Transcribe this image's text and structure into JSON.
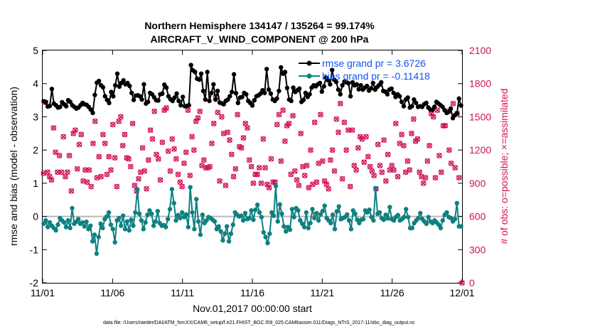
{
  "chart_data": {
    "type": "line",
    "title": "Northern Hemisphere 134147 / 135264 = 99.174%",
    "subtitle": "AIRCRAFT_V_WIND_COMPONENT @ 200 hPa",
    "xlabel": "Nov.01,2017 00:00:00 start",
    "ylabel_left": "rmse and bias (model - observation)",
    "ylabel_right": "# of obs: o=possible; ×=assimilated",
    "footer": "data file: /Users/raeder/DAI/ATM_forcXX/CAM6_setup/f.e21.FHIST_BGC.f09_025.CAM6assim.011/Diags_NTrS_2017-11/obs_diag_output.nc",
    "x_ticks": [
      "11/01",
      "11/06",
      "11/11",
      "11/16",
      "11/21",
      "11/26",
      "12/01"
    ],
    "x_tick_days": [
      0,
      5,
      10,
      15,
      20,
      25,
      30
    ],
    "x_range_days": [
      0,
      30
    ],
    "ylim_left": [
      -2,
      5
    ],
    "y_ticks_left": [
      "-2",
      "-1",
      "0",
      "1",
      "2",
      "3",
      "4",
      "5"
    ],
    "ylim_right": [
      0,
      2100
    ],
    "y_ticks_right": [
      "0",
      "300",
      "600",
      "900",
      "1200",
      "1500",
      "1800",
      "2100"
    ],
    "legend_location": "top-right",
    "colors": {
      "rmse": "#000000",
      "bias": "#0f8080",
      "obs": "#d0115a",
      "zero_line": "#b8b8b8"
    },
    "series": [
      {
        "name": "rmse",
        "legend": "rmse grand pr = 3.6726",
        "values": [
          3.47,
          3.45,
          3.31,
          3.33,
          3.84,
          3.4,
          3.35,
          3.28,
          3.3,
          3.44,
          3.38,
          3.32,
          3.5,
          3.45,
          3.35,
          3.3,
          3.25,
          3.28,
          3.35,
          3.42,
          3.38,
          3.36,
          3.3,
          3.22,
          3.12,
          3.66,
          4.03,
          4.08,
          3.95,
          3.89,
          3.62,
          3.51,
          3.42,
          3.75,
          3.62,
          3.95,
          4.3,
          3.91,
          4.02,
          4.1,
          3.98,
          4.02,
          3.93,
          3.72,
          3.51,
          3.64,
          3.65,
          3.62,
          3.52,
          3.98,
          3.4,
          3.45,
          3.72,
          3.68,
          3.59,
          3.5,
          3.49,
          3.68,
          3.7,
          3.97,
          3.88,
          3.62,
          3.53,
          3.48,
          3.58,
          3.7,
          3.48,
          3.35,
          3.6,
          3.32,
          3.33,
          3.35,
          4.56,
          4.4,
          4.35,
          4.15,
          4.12,
          4.3,
          3.78,
          3.52,
          4.35,
          3.48,
          3.72,
          3.98,
          3.52,
          3.78,
          3.43,
          3.41,
          3.38,
          3.48,
          3.52,
          3.62,
          3.75,
          4.28,
          3.71,
          3.42,
          3.58,
          3.6,
          3.72,
          3.68,
          3.48,
          3.42,
          3.34,
          3.5,
          3.62,
          3.65,
          3.7,
          3.8,
          3.72,
          4.44,
          3.82,
          3.7,
          3.52,
          3.48,
          3.55,
          3.78,
          4.49,
          4.3,
          4.35,
          3.87,
          3.52,
          3.48,
          3.88,
          3.75,
          3.8,
          3.85,
          3.45,
          3.51,
          3.72,
          3.6,
          3.68,
          3.88,
          3.95,
          3.92,
          3.98,
          4.02,
          3.76,
          3.92,
          4.18,
          4.1,
          3.98,
          4.41,
          4.12,
          4.05,
          3.82,
          3.68,
          3.95,
          4.06,
          4.04,
          4.01,
          3.62,
          4.04,
          3.95,
          3.98,
          3.83,
          3.95,
          3.82,
          3.88,
          3.93,
          3.79,
          3.86,
          4.02,
          3.82,
          3.9,
          3.96,
          4.04,
          3.78,
          3.76,
          3.68,
          3.82,
          3.85,
          3.72,
          3.6,
          3.68,
          3.62,
          3.45,
          3.32,
          3.52,
          3.58,
          3.28,
          3.32,
          3.52,
          3.42,
          3.3,
          3.32,
          3.3,
          3.38,
          3.42,
          3.28,
          3.22,
          3.21,
          3.3,
          3.45,
          3.4,
          3.35,
          3.3,
          3.2,
          3.12,
          3.15,
          3.25,
          2.96,
          3.05,
          3.1,
          3.55,
          3.34
        ]
      },
      {
        "name": "bias",
        "legend": "bias grand pr = -0.11418",
        "values": [
          -0.22,
          -0.12,
          -0.32,
          -0.18,
          -0.28,
          -0.35,
          -0.42,
          -0.25,
          -0.05,
          -0.12,
          -0.18,
          -0.32,
          -0.12,
          -0.35,
          0.25,
          -0.22,
          -0.16,
          -0.08,
          -0.22,
          -0.18,
          -0.3,
          -0.16,
          -0.38,
          -0.28,
          -0.75,
          -0.55,
          -1.12,
          -0.62,
          -0.22,
          -0.35,
          -0.08,
          0.0,
          0.12,
          -0.25,
          -0.38,
          -0.78,
          -0.12,
          -0.05,
          -0.28,
          0.02,
          -0.38,
          -0.15,
          -0.42,
          -0.1,
          -0.28,
          0.12,
          0.82,
          0.08,
          -0.12,
          -0.38,
          -0.18,
          0.05,
          0.18,
          0.08,
          -0.28,
          -0.15,
          0.16,
          -0.2,
          -0.28,
          -0.26,
          -0.32,
          -0.08,
          0.22,
          0.82,
          0.4,
          -0.12,
          0.04,
          -0.05,
          0.12,
          -0.02,
          0.06,
          -0.32,
          0.88,
          0.12,
          -0.38,
          0.52,
          -0.15,
          -0.55,
          0.05,
          -0.2,
          -0.12,
          -0.02,
          -0.05,
          -0.1,
          -0.15,
          -0.38,
          -0.3,
          -0.45,
          -0.72,
          -0.52,
          -0.3,
          -0.75,
          -0.52,
          -0.25,
          0.12,
          0.05,
          0.0,
          0.02,
          -0.12,
          0.1,
          -0.08,
          -0.05,
          0.18,
          -0.1,
          0.2,
          0.35,
          0.12,
          -0.02,
          -0.48,
          -0.62,
          -0.8,
          -0.52,
          0.12,
          0.02,
          0.92,
          -0.15,
          0.36,
          0.08,
          -0.3,
          -0.45,
          -0.32,
          -0.4,
          0.22,
          -0.02,
          0.25,
          0.18,
          -0.12,
          -0.22,
          -0.32,
          0.12,
          -0.35,
          -0.2,
          0.22,
          -0.05,
          0.1,
          -0.12,
          0.06,
          0.16,
          0.32,
          -0.05,
          -0.12,
          -0.2,
          0.05,
          -0.38,
          0.15,
          0.3,
          -0.08,
          -0.05,
          -0.02,
          0.06,
          -0.12,
          -0.38,
          0.18,
          0.08,
          -0.1,
          -0.2,
          -0.1,
          -0.08,
          0.18,
          0.12,
          0.2,
          -0.02,
          -0.12,
          0.85,
          0.08,
          0.12,
          -0.05,
          -0.1,
          0.05,
          -0.06,
          0.28,
          -0.08,
          -0.12,
          -0.02,
          0.04,
          -0.12,
          -0.08,
          -0.02,
          0.22,
          -0.02,
          -0.35,
          -0.35,
          -0.2,
          -0.12,
          -0.05,
          0.1,
          -0.08,
          -0.15,
          -0.22,
          -0.02,
          -0.15,
          -0.2,
          -0.12,
          -0.18,
          -0.25,
          -0.35,
          -0.12,
          0.05,
          0.12,
          -0.02,
          -0.05,
          -0.15,
          -0.08,
          0.4,
          -0.3,
          -0.3
        ]
      }
    ],
    "obs_counts": [
      990,
      1630,
      1000,
      960,
      930,
      1400,
      1180,
      1000,
      1150,
      1000,
      1320,
      960,
      1000,
      1150,
      830,
      1350,
      1380,
      1030,
      1250,
      1340,
      920,
      1020,
      910,
      1020,
      870,
      1260,
      1460,
      950,
      1140,
      960,
      1340,
      1260,
      980,
      1140,
      1020,
      1430,
      1130,
      870,
      1460,
      1500,
      1240,
      1340,
      1130,
      1120,
      1050,
      1440,
      880,
      830,
      940,
      1000,
      1220,
      1010,
      850,
      1110,
      1380,
      1300,
      1550,
      1160,
      1120,
      930,
      1270,
      1560,
      1580,
      1190,
      1010,
      1300,
      1210,
      1120,
      980,
      910,
      870,
      1080,
      1180,
      1560,
      970,
      1320,
      1200,
      1460,
      1490,
      1550,
      1060,
      1110,
      1040,
      1040,
      1050,
      1260,
      1440,
      1680,
      1540,
      920,
      1500,
      1350,
      880,
      1360,
      1290,
      1160,
      960,
      1030,
      1520,
      1230,
      1220,
      1310,
      1440,
      1400,
      1110,
      1050,
      900,
      980,
      980,
      1040,
      900,
      1300,
      1040,
      890,
      860,
      1120,
      910,
      910,
      1430,
      1520,
      1100,
      1560,
      1280,
      1420,
      1440,
      980,
      1510,
      1010,
      930,
      880,
      1350,
      1050,
      970,
      1060,
      860,
      1200,
      890,
      1450,
      910,
      1080,
      1520,
      1100,
      920,
      890,
      850,
      1110,
      1200,
      1010,
      1480,
      1360,
      1620,
      940,
      1450,
      1200,
      1380,
      870,
      1380,
      1060,
      1020,
      1220,
      1320,
      1300,
      1090,
      1320,
      1140,
      1050,
      1010,
      970,
      850,
      1250,
      1060,
      1000,
      1290,
      920,
      1160,
      1020,
      1060,
      1020,
      1440,
      960,
      1260,
      1340,
      1240,
      1000,
      1100,
      1020,
      1350,
      1480,
      1280,
      1300,
      1000,
      960,
      900,
      950,
      1100,
      1240,
      1530,
      1500,
      950,
      1560,
      1150,
      1000,
      1420,
      1420,
      1550,
      1200,
      1080,
      1620,
      1040,
      1530,
      950,
      0
    ]
  }
}
